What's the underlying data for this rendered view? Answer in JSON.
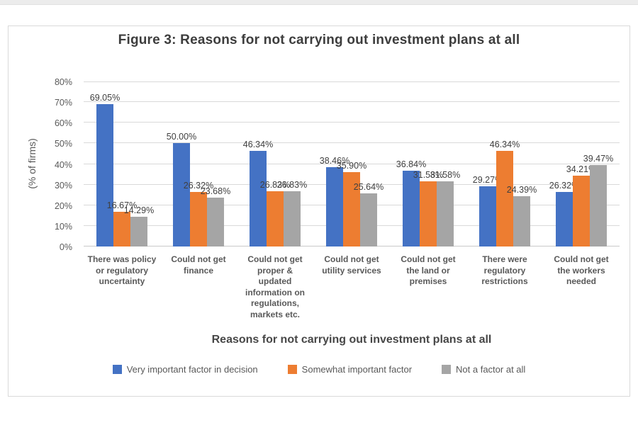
{
  "chart_data": {
    "type": "bar",
    "title": "Figure 3: Reasons for not carrying out investment plans at all",
    "xlabel": "Reasons for not carrying out investment plans at all",
    "ylabel": "(% of firms)",
    "ylim": [
      0,
      80
    ],
    "ytick_step": 10,
    "yticks": [
      "0%",
      "10%",
      "20%",
      "30%",
      "40%",
      "50%",
      "60%",
      "70%",
      "80%"
    ],
    "grid": true,
    "legend_position": "bottom",
    "value_label_suffix": "%",
    "categories": [
      "There was policy or regulatory uncertainty",
      "Could not get finance",
      "Could not get proper & updated information on regulations, markets etc.",
      "Could not get utility services",
      "Could not get the land or premises",
      "There were regulatory restrictions",
      "Could not get the workers needed"
    ],
    "series": [
      {
        "name": "Very important factor in decision",
        "color": "#4472C4",
        "values": [
          69.05,
          50.0,
          46.34,
          38.46,
          36.84,
          29.27,
          26.32
        ]
      },
      {
        "name": "Somewhat important factor",
        "color": "#ED7D31",
        "values": [
          16.67,
          26.32,
          26.83,
          35.9,
          31.58,
          46.34,
          34.21
        ]
      },
      {
        "name": "Not a factor at all",
        "color": "#A5A5A5",
        "values": [
          14.29,
          23.68,
          26.83,
          25.64,
          31.58,
          24.39,
          39.47
        ]
      }
    ]
  }
}
